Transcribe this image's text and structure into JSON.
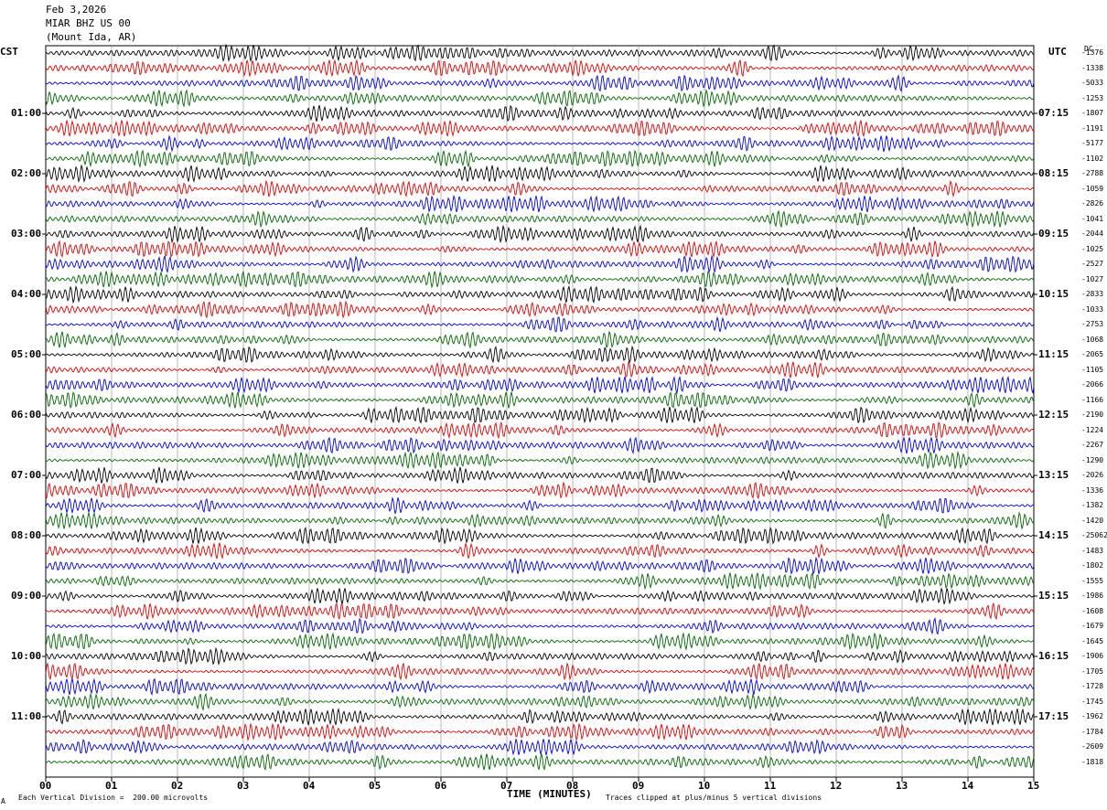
{
  "header": {
    "date": "Feb 3,2026",
    "station": "MIAR BHZ US 00",
    "location": "(Mount Ida, AR)"
  },
  "left_axis_title": "CST",
  "right_axis_title": "UTC",
  "dc_title": "DC",
  "footer": {
    "scale_note": "Each Vertical Division =  200.00 microvolts",
    "clip_note": "Traces clipped at plus/minus 5 vertical divisions",
    "corner_mark": "A"
  },
  "colors": {
    "trace_cycle": [
      "#000000",
      "#dd0000",
      "#0000dd",
      "#006600"
    ],
    "grid": "#888888"
  },
  "chart_data": {
    "type": "line",
    "xlabel": "TIME (MINUTES)",
    "x_ticks": [
      "00",
      "01",
      "02",
      "03",
      "04",
      "05",
      "06",
      "07",
      "08",
      "09",
      "10",
      "11",
      "12",
      "13",
      "14",
      "15"
    ],
    "xlim": [
      0,
      15
    ],
    "left_hour_labels": [
      "01:00",
      "02:00",
      "03:00",
      "04:00",
      "05:00",
      "06:00",
      "07:00",
      "08:00",
      "09:00",
      "10:00",
      "11:00"
    ],
    "right_hour_labels": [
      "07:15",
      "08:15",
      "09:15",
      "10:15",
      "11:15",
      "12:15",
      "13:15",
      "14:15",
      "15:15",
      "16:15",
      "17:15"
    ],
    "rows_per_hour": 4,
    "dc_offsets": [
      "-1376",
      "-1338",
      "-5033",
      "-1253",
      "-1807",
      "-1191",
      "-5177",
      "-1102",
      "-2788",
      "-1059",
      "-2826",
      "-1041",
      "-2044",
      "-1025",
      "-2527",
      "-1027",
      "-2833",
      "-1033",
      "-2753",
      "-1068",
      "-2065",
      "-1105",
      "-2066",
      "-1166",
      "-2190",
      "-1224",
      "-2267",
      "-1290",
      "-2026",
      "-1336",
      "-1382",
      "-1420",
      "-25062",
      "-1483",
      "-1802",
      "-1555",
      "-1986",
      "-1608",
      "-1679",
      "-1645",
      "-1906",
      "-1705",
      "-1728",
      "-1745",
      "-1962",
      "-1784",
      "-2609",
      "-1818"
    ]
  }
}
